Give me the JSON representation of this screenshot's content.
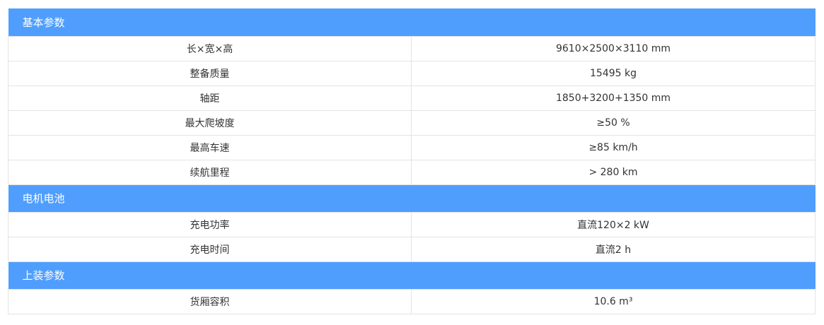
{
  "sections": [
    {
      "title": "基本参数",
      "rows": [
        {
          "label": "长×宽×高",
          "value": "9610×2500×3110 mm"
        },
        {
          "label": "整备质量",
          "value": "15495 kg"
        },
        {
          "label": "轴距",
          "value": "1850+3200+1350 mm"
        },
        {
          "label": "最大爬坡度",
          "value": "≥50 %"
        },
        {
          "label": "最高车速",
          "value": "≥85 km/h"
        },
        {
          "label": "续航里程",
          "value": "> 280 km"
        }
      ]
    },
    {
      "title": "电机电池",
      "rows": [
        {
          "label": "充电功率",
          "value": "直流120×2 kW"
        },
        {
          "label": "充电时间",
          "value": "直流2 h"
        }
      ]
    },
    {
      "title": "上装参数",
      "rows": [
        {
          "label": "货厢容积",
          "value": "10.6 m³"
        }
      ]
    }
  ],
  "colors": {
    "section_header_bg": "#4f9efe",
    "section_header_text": "#ffffff",
    "cell_border": "#e3e3e3",
    "cell_text": "#333333"
  }
}
